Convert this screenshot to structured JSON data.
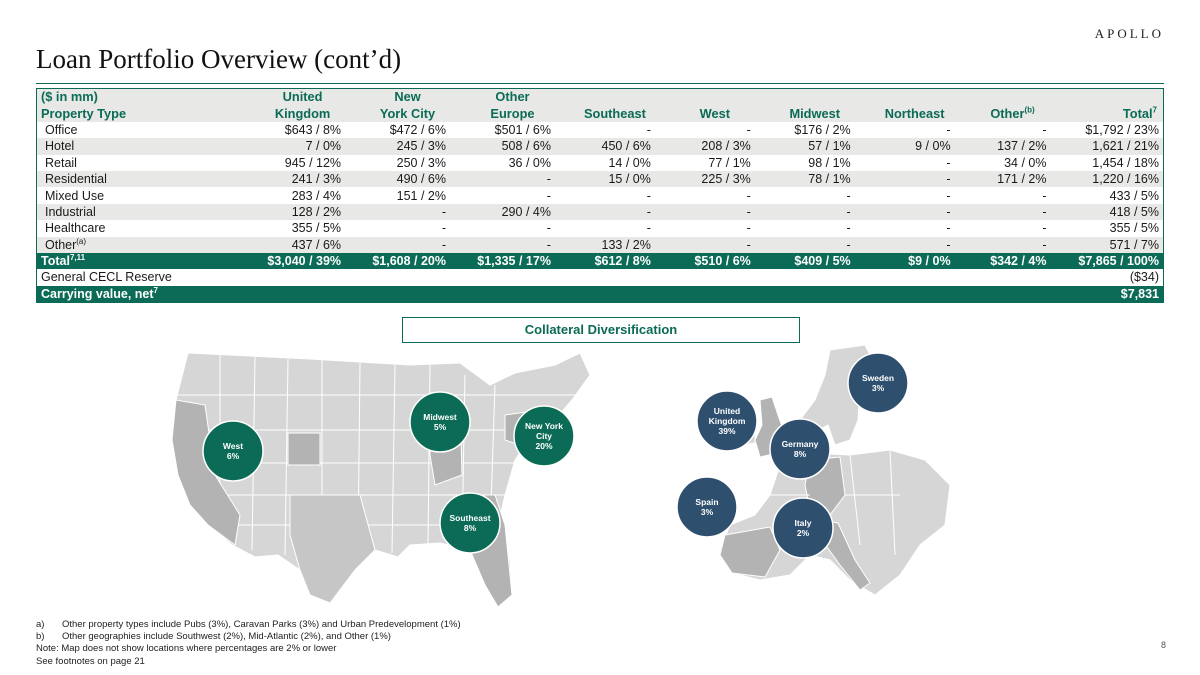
{
  "logo": "APOLLO",
  "title": "Loan Portfolio Overview (cont’d)",
  "table": {
    "header_top": [
      "($ in mm)",
      "United",
      "New",
      "Other"
    ],
    "header_bottom": [
      "Property Type",
      "Kingdom",
      "York City",
      "Europe",
      "Southeast",
      "West",
      "Midwest",
      "Northeast",
      "Other",
      "Total"
    ],
    "header_sup_other": "(b)",
    "header_sup_total": "7",
    "rows": [
      {
        "label": "Office",
        "sup": "",
        "cells": [
          "$643  / 8%",
          "$472  / 6%",
          "$501  / 6%",
          "-",
          "-",
          "$176  / 2%",
          "-",
          "-",
          "$1,792  / 23%"
        ]
      },
      {
        "label": "Hotel",
        "sup": "",
        "cells": [
          "7  / 0%",
          "245  / 3%",
          "508  / 6%",
          "450  / 6%",
          "208  / 3%",
          "57  / 1%",
          "9  / 0%",
          "137  / 2%",
          "1,621  / 21%"
        ]
      },
      {
        "label": "Retail",
        "sup": "",
        "cells": [
          "945  / 12%",
          "250  / 3%",
          "36  / 0%",
          "14  / 0%",
          "77  / 1%",
          "98  / 1%",
          "-",
          "34  / 0%",
          "1,454  / 18%"
        ]
      },
      {
        "label": "Residential",
        "sup": "",
        "cells": [
          "241  / 3%",
          "490  / 6%",
          "-",
          "15  / 0%",
          "225  / 3%",
          "78  / 1%",
          "-",
          "171  / 2%",
          "1,220  / 16%"
        ]
      },
      {
        "label": "Mixed Use",
        "sup": "",
        "cells": [
          "283  / 4%",
          "151  / 2%",
          "-",
          "-",
          "-",
          "-",
          "-",
          "-",
          "433  / 5%"
        ]
      },
      {
        "label": "Industrial",
        "sup": "",
        "cells": [
          "128  / 2%",
          "-",
          "290  / 4%",
          "-",
          "-",
          "-",
          "-",
          "-",
          "418  / 5%"
        ]
      },
      {
        "label": "Healthcare",
        "sup": "",
        "cells": [
          "355  / 5%",
          "-",
          "-",
          "-",
          "-",
          "-",
          "-",
          "-",
          "355  / 5%"
        ]
      },
      {
        "label": "Other",
        "sup": "(a)",
        "cells": [
          "437  / 6%",
          "-",
          "-",
          "133  / 2%",
          "-",
          "-",
          "-",
          "-",
          "571  / 7%"
        ]
      }
    ],
    "total": {
      "label": "Total",
      "sup": "7,11",
      "cells": [
        "$3,040 / 39%",
        "$1,608 / 20%",
        "$1,335 / 17%",
        "$612 / 8%",
        "$510 / 6%",
        "$409 / 5%",
        "$9 / 0%",
        "$342 / 4%",
        "$7,865 / 100%"
      ]
    },
    "cecl": {
      "label": "General CECL Reserve",
      "value": "($34)"
    },
    "carrying": {
      "label": "Carrying value, net",
      "sup": "7",
      "value": "$7,831"
    }
  },
  "collateral_title": "Collateral Diversification",
  "us_bubbles": [
    {
      "name": "West",
      "pct": "6%"
    },
    {
      "name": "Midwest",
      "pct": "5%"
    },
    {
      "name_lines": [
        "New York",
        "City"
      ],
      "pct": "20%"
    },
    {
      "name": "Southeast",
      "pct": "8%"
    }
  ],
  "eu_bubbles": [
    {
      "name": "Sweden",
      "pct": "3%"
    },
    {
      "name_lines": [
        "United",
        "Kingdom"
      ],
      "pct": "39%"
    },
    {
      "name": "Germany",
      "pct": "8%"
    },
    {
      "name": "Spain",
      "pct": "3%"
    },
    {
      "name": "Italy",
      "pct": "2%"
    }
  ],
  "colors": {
    "brand_green": "#0b6b56",
    "eu_blue": "#2f4f6f",
    "map_gray": "#d6d6d6",
    "map_highlight": "#b3b3b3"
  },
  "footnotes": {
    "a_marker": "a)",
    "a": "Other property types include Pubs (3%), Caravan Parks (3%) and Urban Predevelopment (1%)",
    "b_marker": "b)",
    "b": "Other geographies include Southwest (2%), Mid-Atlantic (2%), and Other (1%)",
    "note": "Note: Map does not show locations where percentages are 2% or lower",
    "see": "See footnotes on page 21"
  },
  "page_number": "8"
}
